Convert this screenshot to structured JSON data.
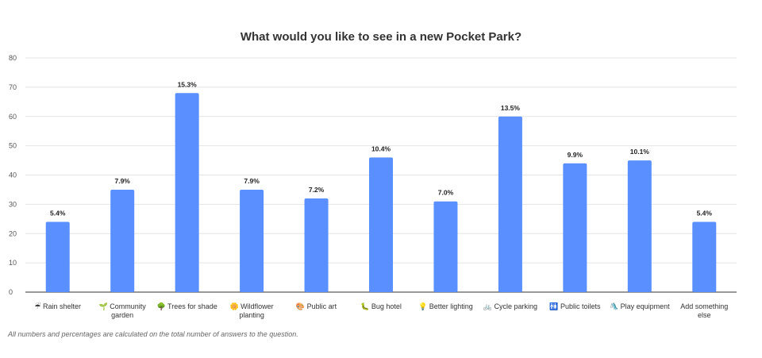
{
  "chart_data": {
    "type": "bar",
    "title": "What would you like to see in a new Pocket Park?",
    "xlabel": "",
    "ylabel": "",
    "ylim": [
      0,
      80
    ],
    "yticks": [
      0,
      10,
      20,
      30,
      40,
      50,
      60,
      70,
      80
    ],
    "grid": true,
    "bar_color": "#5a8fff",
    "categories": [
      {
        "label": "Rain shelter",
        "icon": "☔"
      },
      {
        "label": "Community garden",
        "icon": "🌱"
      },
      {
        "label": "Trees for shade",
        "icon": "🌳"
      },
      {
        "label": "Wildflower planting",
        "icon": "🌼"
      },
      {
        "label": "Public art",
        "icon": "🎨"
      },
      {
        "label": "Bug hotel",
        "icon": "🐛"
      },
      {
        "label": "Better lighting",
        "icon": "💡"
      },
      {
        "label": "Cycle parking",
        "icon": "🚲"
      },
      {
        "label": "Public toilets",
        "icon": "🚻"
      },
      {
        "label": "Play equipment",
        "icon": "🛝"
      },
      {
        "label": "Add something else",
        "icon": ""
      }
    ],
    "values": [
      24,
      35,
      68,
      35,
      32,
      46,
      31,
      60,
      44,
      45,
      24
    ],
    "data_labels": [
      "5.4%",
      "7.9%",
      "15.3%",
      "7.9%",
      "7.2%",
      "10.4%",
      "7.0%",
      "13.5%",
      "9.9%",
      "10.1%",
      "5.4%"
    ]
  },
  "footnote": "All numbers and percentages are calculated on the total number of answers to the question."
}
